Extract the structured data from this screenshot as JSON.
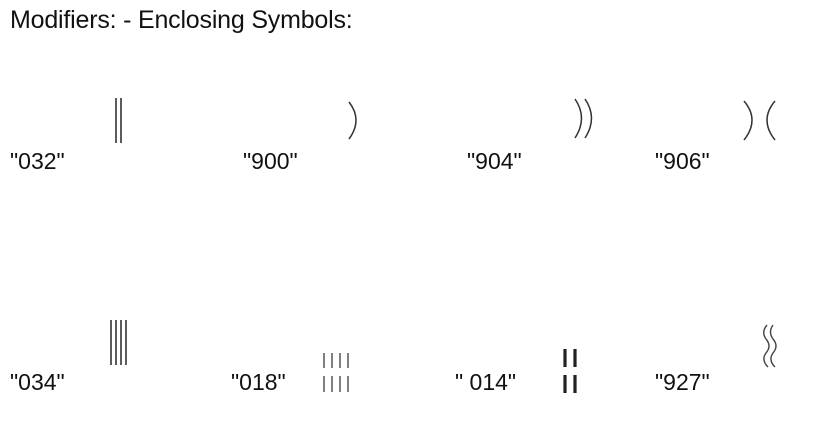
{
  "heading": "Modifiers: - Enclosing Symbols:",
  "symbols": [
    {
      "code": "\"032\"",
      "icon": "double-vertical-bar"
    },
    {
      "code": "\"900\"",
      "icon": "right-parenthesis"
    },
    {
      "code": "\"904\"",
      "icon": "double-right-parenthesis"
    },
    {
      "code": "\"906\"",
      "icon": "back-to-back-parentheses"
    },
    {
      "code": "\"034\"",
      "icon": "quadruple-vertical-bar"
    },
    {
      "code": "\"018\"",
      "icon": "four-short-bars-two-rows"
    },
    {
      "code": "\" 014\"",
      "icon": "two-bars-two-rows"
    },
    {
      "code": "\"927\"",
      "icon": "double-wavy-line"
    }
  ]
}
